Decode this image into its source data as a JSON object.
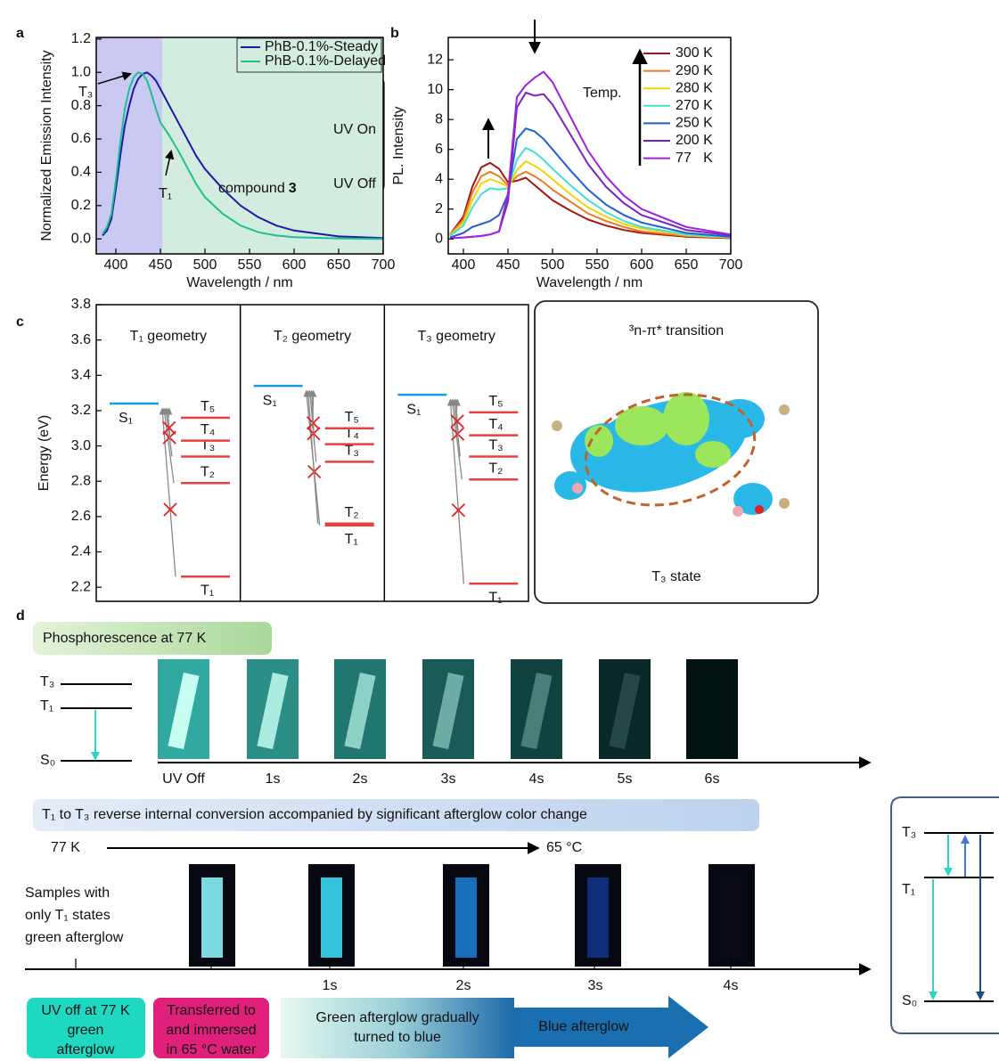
{
  "panel_labels": [
    "a",
    "b",
    "c",
    "d"
  ],
  "chart_data": [
    {
      "type": "line",
      "x_label": "Wavelength / nm",
      "y_label": "Normalized Emission Intensity",
      "x": [
        385,
        390,
        395,
        400,
        405,
        410,
        415,
        420,
        425,
        430,
        435,
        440,
        445,
        450,
        460,
        470,
        480,
        490,
        500,
        520,
        540,
        560,
        580,
        600,
        650,
        700
      ],
      "series": [
        {
          "name": "PhB-0.1%-Steady",
          "color": "#1a1aa8",
          "values": [
            0.02,
            0.05,
            0.12,
            0.3,
            0.5,
            0.68,
            0.8,
            0.9,
            0.96,
            0.99,
            1.0,
            0.98,
            0.95,
            0.9,
            0.8,
            0.7,
            0.6,
            0.5,
            0.42,
            0.3,
            0.2,
            0.13,
            0.08,
            0.05,
            0.015,
            0.005
          ]
        },
        {
          "name": "PhB-0.1%-Delayed",
          "color": "#1fbf8f",
          "values": [
            0.03,
            0.07,
            0.15,
            0.35,
            0.58,
            0.78,
            0.9,
            0.97,
            1.0,
            0.99,
            0.95,
            0.87,
            0.78,
            0.7,
            0.62,
            0.53,
            0.43,
            0.33,
            0.25,
            0.15,
            0.08,
            0.04,
            0.02,
            0.01,
            0.003,
            0
          ]
        }
      ],
      "xlim": [
        378,
        700
      ],
      "xticks": [
        400,
        450,
        500,
        550,
        600,
        650,
        700
      ],
      "ylim": [
        -0.09,
        1.21
      ],
      "yticks": [
        {
          "value": 0,
          "label": "0.0"
        },
        0.2,
        0.4,
        0.6,
        0.8,
        {
          "value": 1,
          "label": "1.0"
        },
        1.2
      ],
      "legend": "upper right",
      "legend_frame": true,
      "shaded_regions": [
        {
          "from": 378,
          "to": 452,
          "color": "#c9c9f4"
        },
        {
          "from": 452,
          "to": 700,
          "color": "#d2ecdf"
        }
      ],
      "annotations": {
        "t3": "T₃",
        "t1": "T₁",
        "compound": "compound",
        "compound_number": "3",
        "uv_on": "UV On",
        "uv_off": "UV Off"
      }
    },
    {
      "type": "line",
      "x_label": "Wavelength / nm",
      "y_label": "PL. Intensity",
      "x": [
        385,
        400,
        410,
        420,
        430,
        440,
        450,
        460,
        470,
        480,
        490,
        500,
        520,
        540,
        560,
        580,
        600,
        650,
        700
      ],
      "series": [
        {
          "name": "300 K",
          "color": "#a51515",
          "values": [
            0.3,
            1.5,
            3.5,
            4.8,
            5.1,
            4.7,
            3.8,
            3.9,
            4.1,
            3.6,
            3.1,
            2.6,
            1.9,
            1.3,
            0.9,
            0.6,
            0.4,
            0.15,
            0.05
          ]
        },
        {
          "name": "290 K",
          "color": "#f07a20",
          "values": [
            0.3,
            1.3,
            3.1,
            4.2,
            4.5,
            4.2,
            3.6,
            4.2,
            4.5,
            4.2,
            3.8,
            3.3,
            2.5,
            1.7,
            1.2,
            0.8,
            0.5,
            0.2,
            0.08
          ]
        },
        {
          "name": "280 K",
          "color": "#f2d400",
          "values": [
            0.25,
            1.1,
            2.6,
            3.7,
            4.0,
            3.8,
            3.5,
            4.6,
            5.2,
            4.9,
            4.5,
            4.0,
            3.0,
            2.1,
            1.5,
            1.0,
            0.7,
            0.25,
            0.1
          ]
        },
        {
          "name": "270 K",
          "color": "#3fe0d6",
          "values": [
            0.2,
            0.9,
            2.1,
            3.0,
            3.4,
            3.3,
            3.4,
            5.3,
            6.1,
            5.8,
            5.3,
            4.7,
            3.6,
            2.6,
            1.8,
            1.2,
            0.8,
            0.3,
            0.12
          ]
        },
        {
          "name": "250 K",
          "color": "#1f5fd0",
          "values": [
            0.1,
            0.4,
            0.8,
            1.0,
            1.2,
            1.6,
            3.0,
            6.7,
            7.4,
            7.2,
            6.7,
            6.0,
            4.6,
            3.3,
            2.3,
            1.6,
            1.1,
            0.4,
            0.15
          ]
        },
        {
          "name": "200 K",
          "color": "#7a22c0",
          "values": [
            0.05,
            0.1,
            0.15,
            0.2,
            0.3,
            0.5,
            2.5,
            8.8,
            9.8,
            9.6,
            9.7,
            9.0,
            7.0,
            5.0,
            3.5,
            2.4,
            1.6,
            0.6,
            0.25
          ]
        },
        {
          "name": "77   K",
          "color": "#a020e0",
          "values": [
            0.05,
            0.1,
            0.15,
            0.2,
            0.3,
            0.5,
            3.0,
            9.5,
            10.3,
            10.8,
            11.2,
            10.5,
            8.2,
            5.9,
            4.2,
            2.9,
            2.0,
            0.8,
            0.3
          ]
        }
      ],
      "xlim": [
        383,
        700
      ],
      "xticks": [
        400,
        450,
        500,
        550,
        600,
        650,
        700
      ],
      "ylim": [
        -1,
        13.5
      ],
      "yticks": [
        0,
        2,
        4,
        6,
        8,
        10,
        12
      ],
      "legend": "upper right",
      "legend_frame": false,
      "annotations": {
        "temp": "Temp."
      }
    },
    {
      "type": "energy_levels",
      "y_label": "Energy (eV)",
      "ylim": [
        2.12,
        3.8
      ],
      "yticks": [
        2.2,
        2.4,
        2.6,
        2.8,
        {
          "value": 3,
          "label": "3.0"
        },
        3.2,
        3.4,
        3.6,
        3.8
      ],
      "geometries": [
        {
          "title": "T₁ geometry",
          "color": "#e8251e",
          "levels": [
            {
              "name": "S₁",
              "value": 3.24,
              "color": "#1a9ae0"
            },
            {
              "name": "T₁",
              "value": 2.26,
              "color": "#e84040"
            },
            {
              "name": "T₂",
              "value": 2.79,
              "color": "#e84040"
            },
            {
              "name": "T₃",
              "value": 2.94,
              "color": "#e84040"
            },
            {
              "name": "T₄",
              "value": 3.03,
              "color": "#e84040"
            },
            {
              "name": "T₅",
              "value": 3.16,
              "color": "#e84040"
            }
          ]
        },
        {
          "title": "T₂ geometry",
          "color": "#1f3fe0",
          "levels": [
            {
              "name": "S₁",
              "value": 3.34,
              "color": "#1a9ae0"
            },
            {
              "name": "T₁",
              "value": 2.55,
              "color": "#e84040"
            },
            {
              "name": "T₂",
              "value": 2.56,
              "color": "#e84040"
            },
            {
              "name": "T₃",
              "value": 2.91,
              "color": "#e84040"
            },
            {
              "name": "T₄",
              "value": 3.01,
              "color": "#e84040"
            },
            {
              "name": "T₅",
              "value": 3.1,
              "color": "#e84040"
            }
          ]
        },
        {
          "title": "T₃ geometry",
          "color": "#1a2f7a",
          "levels": [
            {
              "name": "S₁",
              "value": 3.29,
              "color": "#1a9ae0"
            },
            {
              "name": "T₁",
              "value": 2.22,
              "color": "#e84040"
            },
            {
              "name": "T₂",
              "value": 2.81,
              "color": "#e84040"
            },
            {
              "name": "T₃",
              "value": 2.94,
              "color": "#e84040"
            },
            {
              "name": "T₄",
              "value": 3.06,
              "color": "#e84040"
            },
            {
              "name": "T₅",
              "value": 3.19,
              "color": "#e84040"
            }
          ]
        }
      ]
    }
  ],
  "panel_c_inset": {
    "title": "³n-π* transition",
    "caption": "T₃ state"
  },
  "panel_d": {
    "phosphorescence_title": "Phosphorescence at 77 K",
    "levels_left": [
      "T₃",
      "T₁",
      "S₀"
    ],
    "times_row1": [
      "UV Off",
      "1s",
      "2s",
      "3s",
      "4s",
      "5s",
      "6s"
    ],
    "conversion_title": "T₁ to T₃ reverse internal conversion accompanied by significant afterglow color change",
    "temp_start": "77 K",
    "temp_end": "65 °C",
    "samples_text": [
      "Samples with",
      "only T₁ states",
      "green afterglow"
    ],
    "times_row2": [
      "1s",
      "2s",
      "3s",
      "4s"
    ],
    "steps": [
      {
        "lines": [
          "UV off at 77 K",
          "green",
          "afterglow"
        ]
      },
      {
        "lines": [
          "Transferred to",
          "and immersed",
          "in 65 °C water"
        ]
      },
      {
        "lines": [
          "Green afterglow gradually",
          "turned to blue"
        ]
      },
      {
        "lines": [
          "Blue afterglow"
        ]
      }
    ],
    "levels_right": [
      "T₃",
      "T₁",
      "S₀"
    ]
  }
}
